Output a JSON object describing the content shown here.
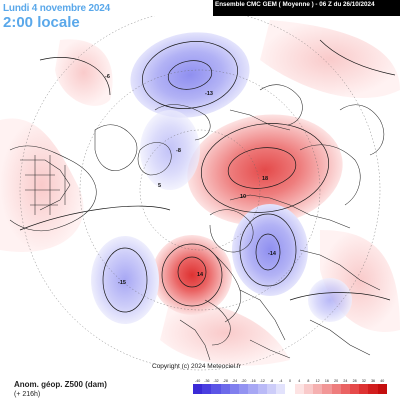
{
  "header": {
    "date_title": "Lundi 4 novembre 2024",
    "time_title": "2:00 locale",
    "model_info": "Ensemble CMC GEM  ( Moyenne )  -  06 Z du 26/10/2024"
  },
  "footer": {
    "variable_label": "Anom. géop. Z500 (dam)",
    "lead_time": "(+ 216h)",
    "copyright": "Copyright (c) 2024 Meteociel.fr"
  },
  "colorbar": {
    "tick_labels": [
      "-40",
      "-36",
      "-32",
      "-28",
      "-24",
      "-20",
      "-16",
      "-12",
      "-8",
      "-4",
      "0",
      "4",
      "8",
      "12",
      "16",
      "20",
      "24",
      "28",
      "32",
      "36",
      "40"
    ],
    "colors": [
      "#3a2ad6",
      "#4a3ee0",
      "#5b55e6",
      "#6d6aea",
      "#807fee",
      "#9393f1",
      "#a7a7f4",
      "#babaf7",
      "#cdcdf9",
      "#e2e2fc",
      "#ffffff",
      "#fde3e3",
      "#f9caca",
      "#f5b0b0",
      "#f29797",
      "#ee7d7d",
      "#ea6363",
      "#e64a4a",
      "#de3232",
      "#d21e1e",
      "#c40e0e"
    ]
  },
  "map": {
    "anomaly_labels": [
      {
        "text": "-13",
        "kind": "negative"
      },
      {
        "text": "-6",
        "kind": "negative"
      },
      {
        "text": "18",
        "kind": "positive"
      },
      {
        "text": "10",
        "kind": "positive"
      },
      {
        "text": "14",
        "kind": "positive"
      },
      {
        "text": "-14",
        "kind": "negative"
      },
      {
        "text": "-15",
        "kind": "negative"
      },
      {
        "text": "5",
        "kind": "positive"
      },
      {
        "text": "-8",
        "kind": "negative"
      }
    ]
  }
}
